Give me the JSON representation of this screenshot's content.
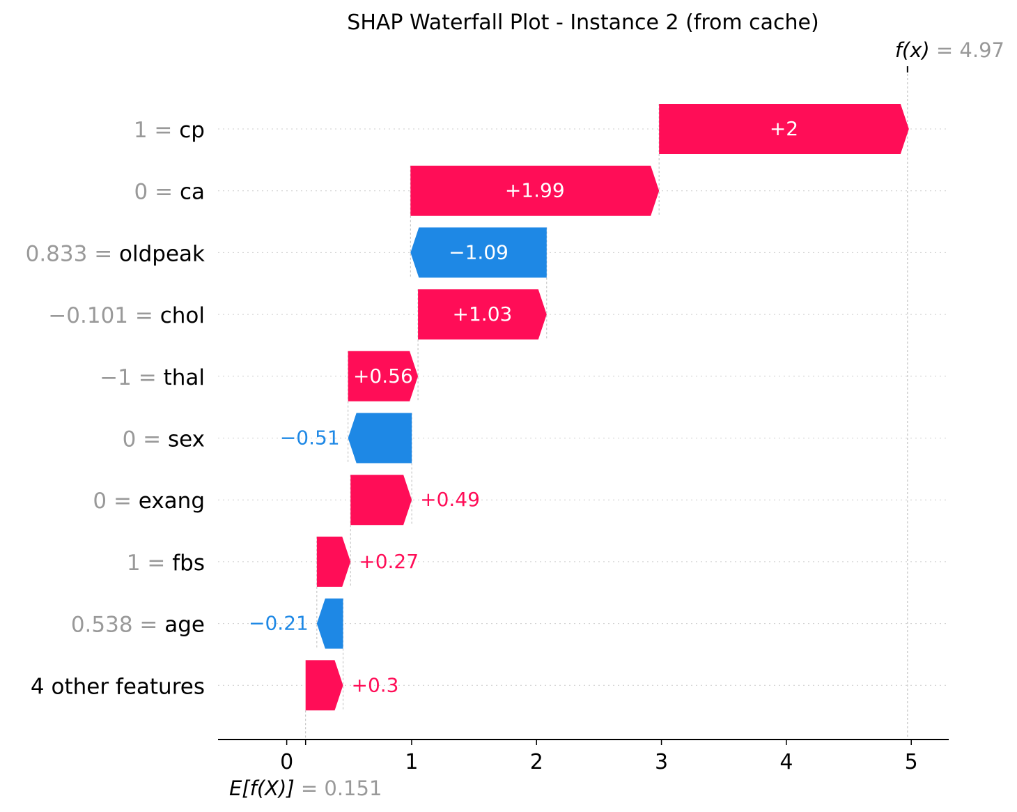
{
  "chart_data": {
    "type": "waterfall",
    "title": "SHAP Waterfall Plot - Instance 2 (from cache)",
    "base_value": 0.151,
    "base_label_expr": "E[f(X)]",
    "base_label_value": "= 0.151",
    "output_value": 4.97,
    "output_label_expr": "f(x)",
    "output_label_value": "= 4.97",
    "xlim": [
      -0.55,
      5.3
    ],
    "xticks": [
      0,
      1,
      2,
      3,
      4,
      5
    ],
    "features": [
      {
        "value_text": "1",
        "name": "cp",
        "shap": 2.0,
        "label": "+2"
      },
      {
        "value_text": "0",
        "name": "ca",
        "shap": 1.99,
        "label": "+1.99"
      },
      {
        "value_text": "0.833",
        "name": "oldpeak",
        "shap": -1.09,
        "label": "−1.09"
      },
      {
        "value_text": "−0.101",
        "name": "chol",
        "shap": 1.03,
        "label": "+1.03"
      },
      {
        "value_text": "−1",
        "name": "thal",
        "shap": 0.56,
        "label": "+0.56"
      },
      {
        "value_text": "0",
        "name": "sex",
        "shap": -0.51,
        "label": "−0.51"
      },
      {
        "value_text": "0",
        "name": "exang",
        "shap": 0.49,
        "label": "+0.49"
      },
      {
        "value_text": "1",
        "name": "fbs",
        "shap": 0.27,
        "label": "+0.27"
      },
      {
        "value_text": "0.538",
        "name": "age",
        "shap": -0.21,
        "label": "−0.21"
      },
      {
        "value_text": "",
        "name": "4 other features",
        "shap": 0.3,
        "label": "+0.3"
      }
    ],
    "colors": {
      "positive": "#ff0d57",
      "negative": "#1e88e5",
      "axis": "#000000",
      "muted": "#999999"
    }
  }
}
